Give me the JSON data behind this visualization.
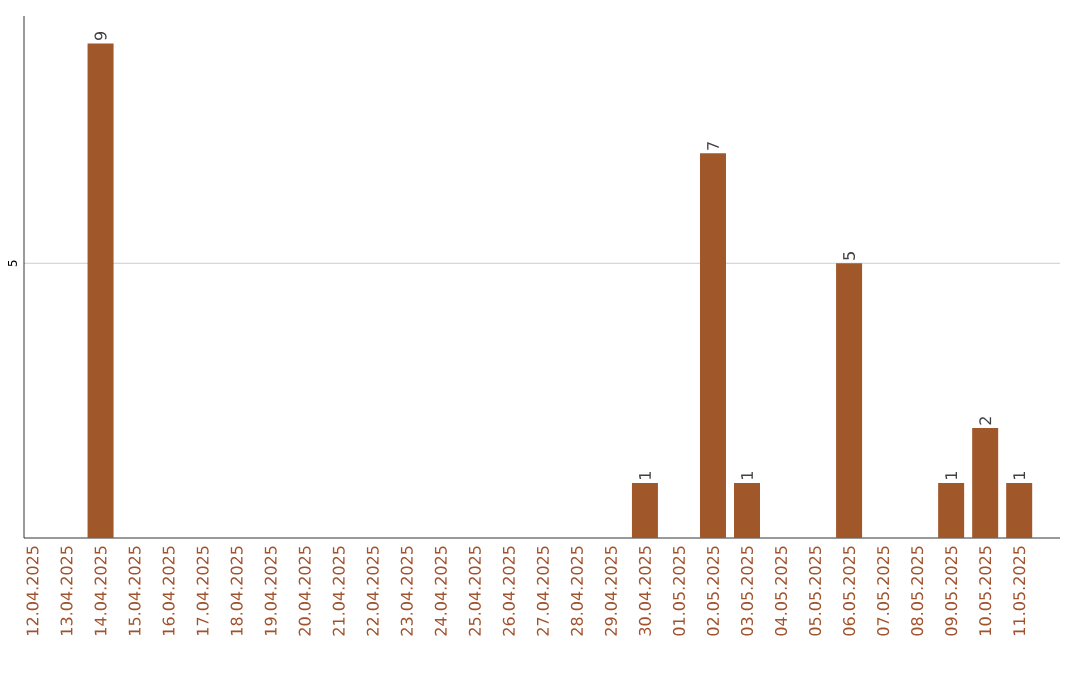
{
  "chart_data": {
    "type": "bar",
    "categories": [
      "12.04.2025",
      "13.04.2025",
      "14.04.2025",
      "15.04.2025",
      "16.04.2025",
      "17.04.2025",
      "18.04.2025",
      "19.04.2025",
      "20.04.2025",
      "21.04.2025",
      "22.04.2025",
      "23.04.2025",
      "24.04.2025",
      "25.04.2025",
      "26.04.2025",
      "27.04.2025",
      "28.04.2025",
      "29.04.2025",
      "30.04.2025",
      "01.05.2025",
      "02.05.2025",
      "03.05.2025",
      "04.05.2025",
      "05.05.2025",
      "06.05.2025",
      "07.05.2025",
      "08.05.2025",
      "09.05.2025",
      "10.05.2025",
      "11.05.2025"
    ],
    "values": [
      0,
      0,
      9,
      0,
      0,
      0,
      0,
      0,
      0,
      0,
      0,
      0,
      0,
      0,
      0,
      0,
      0,
      0,
      1,
      0,
      7,
      1,
      0,
      0,
      5,
      0,
      0,
      1,
      2,
      1
    ],
    "value_labels": [
      null,
      null,
      "9",
      null,
      null,
      null,
      null,
      null,
      null,
      null,
      null,
      null,
      null,
      null,
      null,
      null,
      null,
      null,
      "1",
      null,
      "7",
      "1",
      null,
      null,
      "5",
      null,
      null,
      "1",
      "2",
      "1"
    ],
    "color": "#a0572a",
    "ylim": [
      0,
      9.5
    ],
    "yticks": [
      5
    ],
    "grid": "y"
  }
}
